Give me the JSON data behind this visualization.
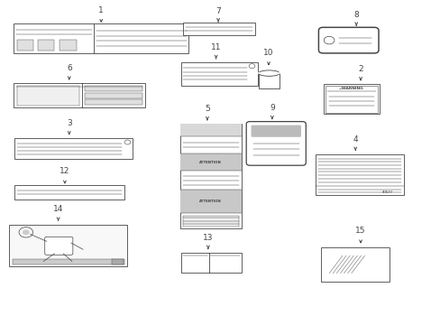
{
  "bg_color": "#ffffff",
  "lc": "#444444",
  "items": [
    {
      "id": "1",
      "num": "1",
      "nx": 0.228,
      "ny": 0.955,
      "bx": 0.028,
      "by": 0.84,
      "bw": 0.4,
      "bh": 0.09,
      "style": "wide_label"
    },
    {
      "id": "6",
      "num": "6",
      "nx": 0.155,
      "ny": 0.775,
      "bx": 0.028,
      "by": 0.67,
      "bw": 0.3,
      "bh": 0.075,
      "style": "two_panel"
    },
    {
      "id": "3",
      "num": "3",
      "nx": 0.155,
      "ny": 0.605,
      "bx": 0.03,
      "by": 0.51,
      "bw": 0.27,
      "bh": 0.065,
      "style": "emission_label"
    },
    {
      "id": "12",
      "num": "12",
      "nx": 0.145,
      "ny": 0.455,
      "bx": 0.03,
      "by": 0.385,
      "bw": 0.25,
      "bh": 0.045,
      "style": "simple_lined"
    },
    {
      "id": "14",
      "num": "14",
      "nx": 0.13,
      "ny": 0.338,
      "bx": 0.018,
      "by": 0.178,
      "bw": 0.27,
      "bh": 0.13,
      "style": "engine_diagram"
    },
    {
      "id": "7",
      "num": "7",
      "nx": 0.495,
      "ny": 0.952,
      "bx": 0.415,
      "by": 0.895,
      "bw": 0.165,
      "bh": 0.038,
      "style": "thin_label"
    },
    {
      "id": "11",
      "num": "11",
      "nx": 0.49,
      "ny": 0.838,
      "bx": 0.41,
      "by": 0.738,
      "bw": 0.175,
      "bh": 0.073,
      "style": "emission_label2"
    },
    {
      "id": "5",
      "num": "5",
      "nx": 0.47,
      "ny": 0.648,
      "bx": 0.408,
      "by": 0.295,
      "bw": 0.14,
      "bh": 0.325,
      "style": "tall_emission"
    },
    {
      "id": "13",
      "num": "13",
      "nx": 0.472,
      "ny": 0.248,
      "bx": 0.41,
      "by": 0.158,
      "bw": 0.138,
      "bh": 0.063,
      "style": "two_panel_small"
    },
    {
      "id": "10",
      "num": "10",
      "nx": 0.61,
      "ny": 0.822,
      "bx": 0.587,
      "by": 0.73,
      "bw": 0.048,
      "bh": 0.06,
      "style": "cylinder"
    },
    {
      "id": "9",
      "num": "9",
      "nx": 0.618,
      "ny": 0.652,
      "bx": 0.563,
      "by": 0.495,
      "bw": 0.128,
      "bh": 0.128,
      "style": "rounded_box"
    },
    {
      "id": "8",
      "num": "8",
      "nx": 0.81,
      "ny": 0.94,
      "bx": 0.73,
      "by": 0.845,
      "bw": 0.125,
      "bh": 0.068,
      "style": "pill_label"
    },
    {
      "id": "2",
      "num": "2",
      "nx": 0.82,
      "ny": 0.772,
      "bx": 0.735,
      "by": 0.65,
      "bw": 0.128,
      "bh": 0.093,
      "style": "warning_label"
    },
    {
      "id": "4",
      "num": "4",
      "nx": 0.808,
      "ny": 0.555,
      "bx": 0.718,
      "by": 0.398,
      "bw": 0.2,
      "bh": 0.128,
      "style": "dense_label"
    },
    {
      "id": "15",
      "num": "15",
      "nx": 0.82,
      "ny": 0.27,
      "bx": 0.73,
      "by": 0.13,
      "bw": 0.155,
      "bh": 0.108,
      "style": "blank_label"
    }
  ]
}
